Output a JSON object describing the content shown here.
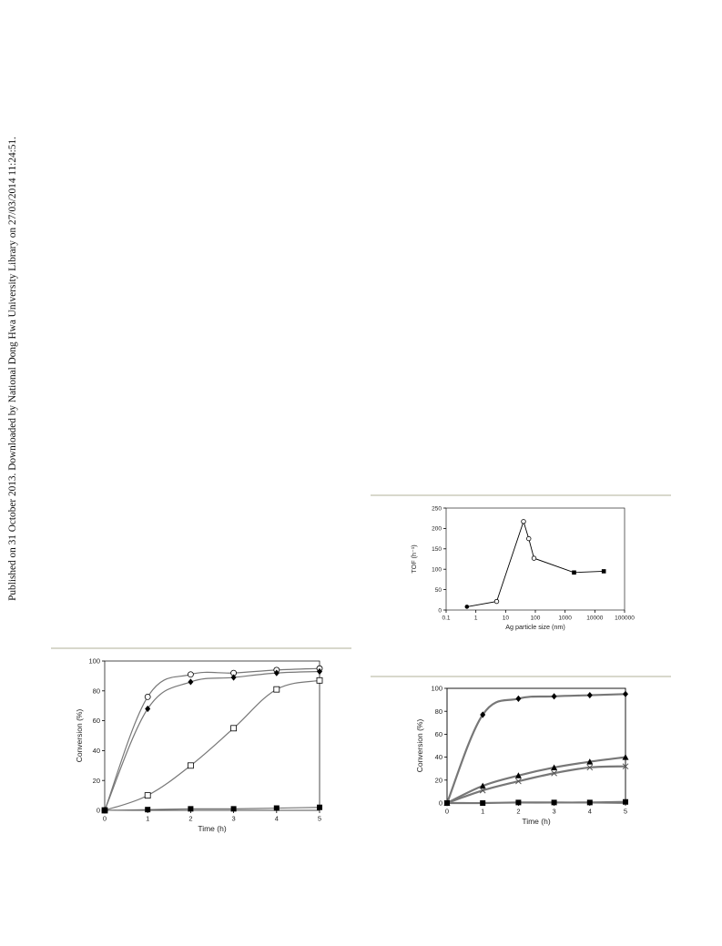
{
  "side_note": "Published on 31 October 2013. Downloaded by National Dong Hwa University Library on 27/03/2014 11:24:51.",
  "colors": {
    "rule": "#d8d8cc",
    "curve": "#777777",
    "marker": "#000000"
  },
  "chart_data": [
    {
      "id": "tof_vs_size",
      "type": "scatter",
      "xscale": "log",
      "xlabel": "Ag particle size (nm)",
      "ylabel": "TOF (h⁻¹)",
      "xlim": [
        0.1,
        100000
      ],
      "ylim": [
        0,
        250
      ],
      "xticks": [
        "0.1",
        "1",
        "10",
        "100",
        "1000",
        "10000",
        "100000"
      ],
      "yticks": [
        "0",
        "50",
        "100",
        "150",
        "200",
        "250"
      ],
      "grid": false,
      "series": [
        {
          "marker": "filled-circle",
          "x": [
            0.5
          ],
          "y": [
            8
          ]
        },
        {
          "marker": "open-circle",
          "x": [
            5,
            40,
            60,
            90
          ],
          "y": [
            21,
            217,
            175,
            127
          ]
        },
        {
          "marker": "filled-square",
          "x": [
            2000,
            20000
          ],
          "y": [
            92,
            95
          ]
        }
      ],
      "line_points": {
        "x": [
          0.5,
          5,
          40,
          60,
          90,
          2000,
          20000
        ],
        "y": [
          8,
          21,
          217,
          175,
          127,
          92,
          95
        ]
      }
    },
    {
      "id": "conversion_left",
      "type": "line",
      "xlabel": "Time (h)",
      "ylabel": "Conversion (%)",
      "xlim": [
        0,
        5
      ],
      "ylim": [
        0,
        100
      ],
      "xticks": [
        "0",
        "1",
        "2",
        "3",
        "4",
        "5"
      ],
      "yticks": [
        "0",
        "20",
        "40",
        "60",
        "80",
        "100"
      ],
      "grid": false,
      "series": [
        {
          "marker": "open-circle",
          "x": [
            0,
            1,
            2,
            3,
            4,
            5
          ],
          "y": [
            0,
            76,
            91,
            92,
            94,
            95
          ]
        },
        {
          "marker": "filled-diamond",
          "x": [
            0,
            1,
            2,
            3,
            4,
            5
          ],
          "y": [
            0,
            68,
            86,
            89,
            92,
            93
          ]
        },
        {
          "marker": "open-square",
          "x": [
            0,
            1,
            2,
            3,
            4,
            5
          ],
          "y": [
            0,
            10,
            30,
            55,
            81,
            87
          ]
        },
        {
          "marker": "filled-square",
          "x": [
            0,
            1,
            2,
            3,
            4,
            5
          ],
          "y": [
            0,
            0.5,
            1,
            1,
            1.5,
            2
          ]
        }
      ]
    },
    {
      "id": "conversion_right",
      "type": "line",
      "xlabel": "Time (h)",
      "ylabel": "Conversion (%)",
      "xlim": [
        0,
        5
      ],
      "ylim": [
        0,
        100
      ],
      "xticks": [
        "0",
        "1",
        "2",
        "3",
        "4",
        "5"
      ],
      "yticks": [
        "0",
        "20",
        "40",
        "60",
        "80",
        "100"
      ],
      "grid": false,
      "series": [
        {
          "marker": "filled-diamond",
          "x": [
            0,
            1,
            2,
            3,
            4,
            5
          ],
          "y": [
            0,
            77,
            91,
            93,
            94,
            95
          ]
        },
        {
          "marker": "filled-triangle",
          "x": [
            0,
            1,
            2,
            3,
            4,
            5
          ],
          "y": [
            0,
            15,
            24,
            31,
            36,
            40
          ]
        },
        {
          "marker": "cross",
          "x": [
            0,
            1,
            2,
            3,
            4,
            5
          ],
          "y": [
            0,
            11,
            19,
            26,
            31,
            32
          ]
        },
        {
          "marker": "filled-square",
          "x": [
            0,
            1,
            2,
            3,
            4,
            5
          ],
          "y": [
            0,
            0,
            0.5,
            0.5,
            0.5,
            1
          ]
        }
      ]
    }
  ]
}
